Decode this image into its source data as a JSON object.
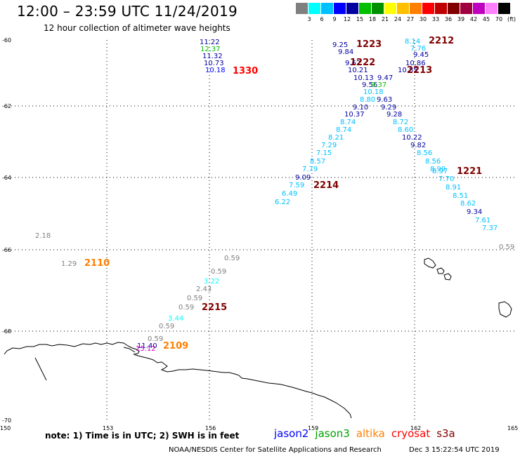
{
  "header": {
    "title": "12:00 – 23:59 UTC 11/24/2019",
    "subtitle": "12 hour collection of altimeter wave heights"
  },
  "colorbar": {
    "colors": [
      "#7f7f7f",
      "#00ffff",
      "#00c0ff",
      "#0000ff",
      "#0000a0",
      "#00c000",
      "#009000",
      "#ffff00",
      "#ffc000",
      "#ff8000",
      "#ff0000",
      "#c00000",
      "#800000",
      "#a00040",
      "#c000c0",
      "#ff80ff",
      "#000000"
    ],
    "labels": [
      "3",
      "6",
      "9",
      "12",
      "15",
      "18",
      "21",
      "24",
      "27",
      "30",
      "33",
      "36",
      "39",
      "42",
      "45",
      "70",
      "(ft)"
    ]
  },
  "axes": {
    "lon_labels": [
      "150",
      "153",
      "156",
      "159",
      "162",
      "165"
    ],
    "lat_labels": [
      "-60",
      "-62",
      "-64",
      "-66",
      "-68",
      "-70"
    ]
  },
  "observations": [
    {
      "t": "11.22",
      "c": "#0000a0"
    },
    {
      "t": "12.37",
      "c": "#00c000"
    },
    {
      "t": "11.32",
      "c": "#0000a0"
    },
    {
      "t": "10.73",
      "c": "#0000a0"
    },
    {
      "t": "10.18",
      "c": "#0000ff"
    },
    {
      "t": "8.14",
      "c": "#00c0ff"
    },
    {
      "t": "7.76",
      "c": "#00c0ff"
    },
    {
      "t": "9.25",
      "c": "#0000a0"
    },
    {
      "t": "9.84",
      "c": "#0000a0"
    },
    {
      "t": "9.45",
      "c": "#0000a0"
    },
    {
      "t": "9.62",
      "c": "#0000a0"
    },
    {
      "t": "10.86",
      "c": "#0000a0"
    },
    {
      "t": "10.21",
      "c": "#0000a0"
    },
    {
      "t": "10.85",
      "c": "#0000a0"
    },
    {
      "t": "10.13",
      "c": "#0000a0"
    },
    {
      "t": "9.47",
      "c": "#0000a0"
    },
    {
      "t": "9.56",
      "c": "#0000a0"
    },
    {
      "t": "9.37",
      "c": "#00c000"
    },
    {
      "t": "10.18",
      "c": "#00c0ff"
    },
    {
      "t": "8.80",
      "c": "#00c0ff"
    },
    {
      "t": "9.63",
      "c": "#0000a0"
    },
    {
      "t": "9.10",
      "c": "#0000a0"
    },
    {
      "t": "9.29",
      "c": "#0000a0"
    },
    {
      "t": "10.37",
      "c": "#0000a0"
    },
    {
      "t": "9.28",
      "c": "#0000a0"
    },
    {
      "t": "8.74",
      "c": "#00c0ff"
    },
    {
      "t": "8.72",
      "c": "#00c0ff"
    },
    {
      "t": "8.74",
      "c": "#00c0ff"
    },
    {
      "t": "8.60",
      "c": "#00c0ff"
    },
    {
      "t": "8.21",
      "c": "#00c0ff"
    },
    {
      "t": "10.22",
      "c": "#0000a0"
    },
    {
      "t": "7.29",
      "c": "#00c0ff"
    },
    {
      "t": "9.82",
      "c": "#0000a0"
    },
    {
      "t": "7.15",
      "c": "#00c0ff"
    },
    {
      "t": "8.56",
      "c": "#00c0ff"
    },
    {
      "t": "8.57",
      "c": "#00c0ff"
    },
    {
      "t": "8.56",
      "c": "#00c0ff"
    },
    {
      "t": "7.79",
      "c": "#00c0ff"
    },
    {
      "t": "8.99",
      "c": "#00c0ff"
    },
    {
      "t": "8.97",
      "c": "#00c0ff"
    },
    {
      "t": "9.09",
      "c": "#0000a0"
    },
    {
      "t": "7.70",
      "c": "#00c0ff"
    },
    {
      "t": "7.59",
      "c": "#00c0ff"
    },
    {
      "t": "8.91",
      "c": "#00c0ff"
    },
    {
      "t": "6.49",
      "c": "#00c0ff"
    },
    {
      "t": "8.51",
      "c": "#00c0ff"
    },
    {
      "t": "6.22",
      "c": "#00c0ff"
    },
    {
      "t": "8.62",
      "c": "#00c0ff"
    },
    {
      "t": "9.34",
      "c": "#0000a0"
    },
    {
      "t": "7.61",
      "c": "#00c0ff"
    },
    {
      "t": "7.37",
      "c": "#00c0ff"
    },
    {
      "t": "0.59",
      "c": "#7f7f7f"
    },
    {
      "t": "2.18",
      "c": "#7f7f7f"
    },
    {
      "t": "1.29",
      "c": "#7f7f7f"
    },
    {
      "t": "0.59",
      "c": "#7f7f7f"
    },
    {
      "t": "0.59",
      "c": "#7f7f7f"
    },
    {
      "t": "3.22",
      "c": "#00ffff"
    },
    {
      "t": "2.43",
      "c": "#7f7f7f"
    },
    {
      "t": "0.59",
      "c": "#7f7f7f"
    },
    {
      "t": "0.59",
      "c": "#7f7f7f"
    },
    {
      "t": "3.44",
      "c": "#00ffff"
    },
    {
      "t": "0.59",
      "c": "#7f7f7f"
    },
    {
      "t": "0.59",
      "c": "#7f7f7f"
    },
    {
      "t": "11.40",
      "c": "#0000a0"
    },
    {
      "t": "15.12",
      "c": "#c000c0"
    }
  ],
  "passes": [
    {
      "t": "1330",
      "c": "#ff0000"
    },
    {
      "t": "1223",
      "c": "#800000"
    },
    {
      "t": "2212",
      "c": "#800000"
    },
    {
      "t": "1222",
      "c": "#800000"
    },
    {
      "t": "2213",
      "c": "#800000"
    },
    {
      "t": "1221",
      "c": "#800000"
    },
    {
      "t": "2214",
      "c": "#800000"
    },
    {
      "t": "2110",
      "c": "#ff8000"
    },
    {
      "t": "2215",
      "c": "#800000"
    },
    {
      "t": "2109",
      "c": "#ff8000"
    }
  ],
  "footer": {
    "note": "note:  1) Time is in UTC;  2) SWH is in feet",
    "legend": [
      {
        "name": "jason2",
        "color": "#0000ff"
      },
      {
        "name": "jason3",
        "color": "#00a000"
      },
      {
        "name": "altika",
        "color": "#ff8000"
      },
      {
        "name": "cryosat",
        "color": "#ff0000"
      },
      {
        "name": "s3a",
        "color": "#800000"
      }
    ],
    "credit": "NOAA/NESDIS Center for Satellite Applications and Research",
    "stamp": "Dec  3 15:22:54 UTC 2019"
  }
}
